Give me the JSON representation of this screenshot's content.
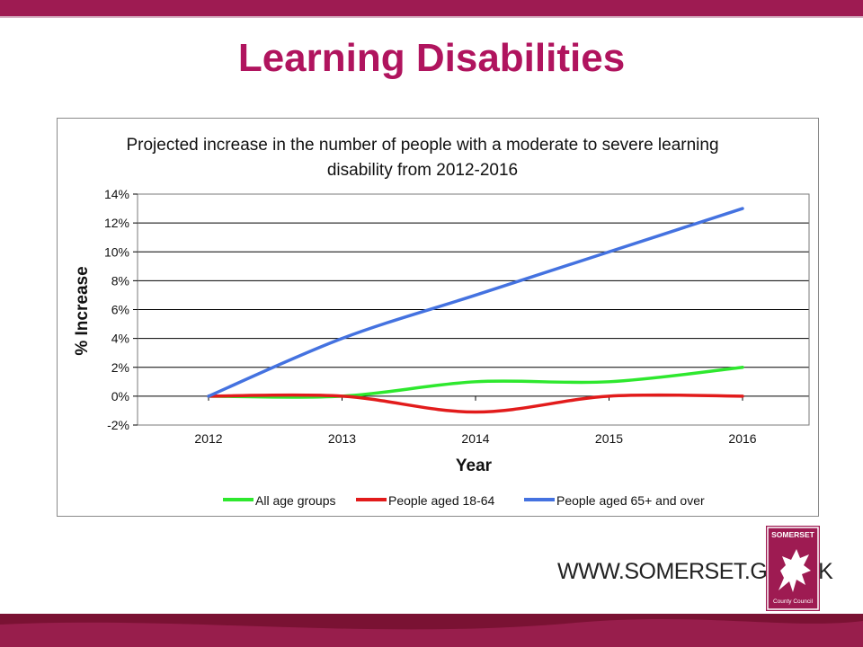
{
  "slide": {
    "title": "Learning Disabilities"
  },
  "colors": {
    "title": "#b0145e",
    "brand_bar": "#9e1b52",
    "bottom_bar_dark": "#7a1233",
    "bottom_bar_light": "#b02860"
  },
  "footer": {
    "url": "WWW.SOMERSET.GOV.UK",
    "logo_name": "SOMERSET",
    "logo_sub": "County Council"
  },
  "chart_data": {
    "type": "line",
    "title": "Projected increase in the number of people with a moderate to severe learning disability from 2012-2016",
    "xlabel": "Year",
    "ylabel": "% Increase",
    "x": [
      "2012",
      "2013",
      "2014",
      "2015",
      "2016"
    ],
    "ylim": [
      -2,
      14
    ],
    "yticks": [
      "-2%",
      "0%",
      "2%",
      "4%",
      "6%",
      "8%",
      "10%",
      "12%",
      "14%"
    ],
    "grid": true,
    "legend_position": "bottom",
    "series": [
      {
        "name": "All age groups",
        "color": "#2ee82e",
        "values": [
          0,
          0,
          1,
          1,
          2
        ]
      },
      {
        "name": "People aged 18-64",
        "color": "#e21b1b",
        "values": [
          0,
          0,
          -1.1,
          0,
          0
        ]
      },
      {
        "name": "People aged 65+ and over",
        "color": "#4472e0",
        "values": [
          0,
          4,
          7,
          10,
          13
        ]
      }
    ]
  }
}
